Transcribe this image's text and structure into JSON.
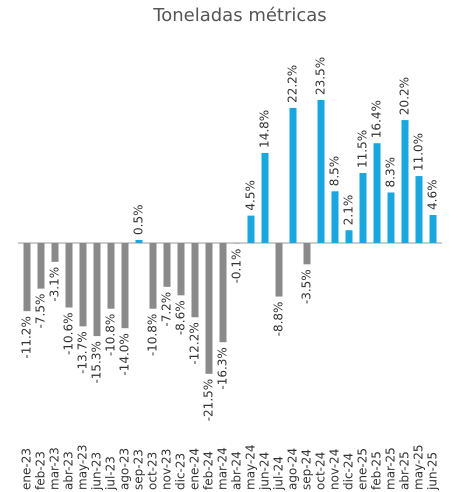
{
  "chart_data": {
    "type": "bar",
    "title": "Toneladas métricas",
    "categories": [
      "ene-23",
      "feb-23",
      "mar-23",
      "abr-23",
      "may-23",
      "jun-23",
      "jul-23",
      "ago-23",
      "sep-23",
      "oct-23",
      "nov-23",
      "dic-23",
      "ene-24",
      "feb-24",
      "mar-24",
      "abr-24",
      "may-24",
      "jun-24",
      "jul-24",
      "ago-24",
      "sep-24",
      "oct-24",
      "nov-24",
      "dic-24",
      "ene-25",
      "feb-25",
      "mar-25",
      "abr-25",
      "may-25",
      "jun-25"
    ],
    "values": [
      -11.2,
      -7.5,
      -3.1,
      -10.6,
      -13.7,
      -15.3,
      -10.8,
      -14.0,
      0.5,
      -10.8,
      -7.2,
      -8.6,
      -12.2,
      -21.5,
      -16.3,
      -0.1,
      4.5,
      14.8,
      -8.8,
      22.2,
      -3.5,
      23.5,
      8.5,
      2.1,
      11.5,
      16.4,
      8.3,
      20.2,
      11.0,
      4.6
    ],
    "value_labels": [
      "-11.2%",
      "-7.5%",
      "-3.1%",
      "-10.6%",
      "-13.7%",
      "-15.3%",
      "-10.8%",
      "-14.0%",
      "0.5%",
      "-10.8%",
      "-7.2%",
      "-8.6%",
      "-12.2%",
      "-21.5%",
      "-16.3%",
      "-0.1%",
      "4.5%",
      "14.8%",
      "-8.8%",
      "22.2%",
      "-3.5%",
      "23.5%",
      "8.5%",
      "2.1%",
      "11.5%",
      "16.4%",
      "8.3%",
      "20.2%",
      "11.0%",
      "4.6%"
    ],
    "color_positive": "#1aa7e0",
    "color_negative": "#8a8a8a"
  }
}
